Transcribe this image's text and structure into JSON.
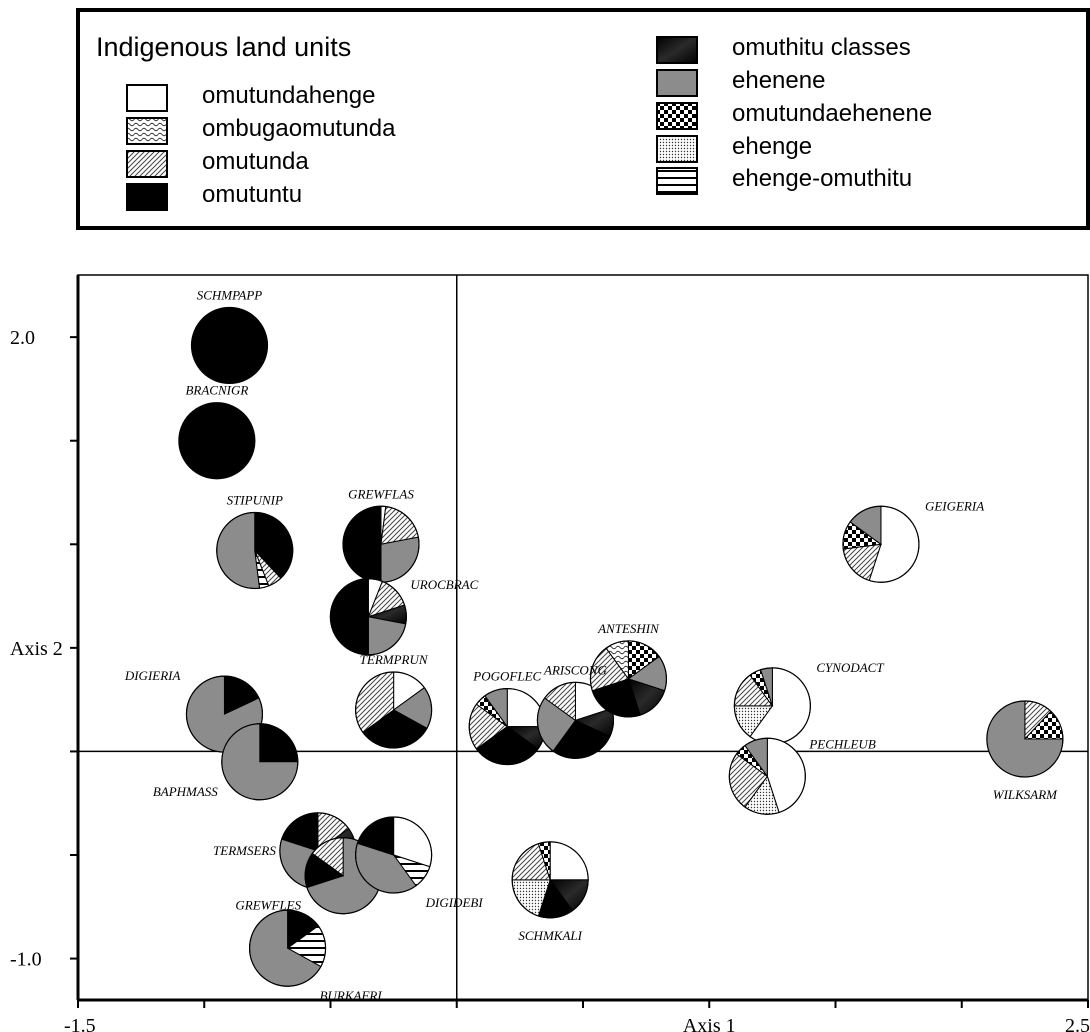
{
  "legend": {
    "title": "Indigenous land units",
    "items": [
      {
        "id": "omutundahenge",
        "label": "omutundahenge",
        "pattern": "white"
      },
      {
        "id": "ombugaomutunda",
        "label": "ombugaomutunda",
        "pattern": "wavy"
      },
      {
        "id": "omutunda",
        "label": "omutunda",
        "pattern": "diagonal"
      },
      {
        "id": "omutuntu",
        "label": "omutuntu",
        "pattern": "black"
      },
      {
        "id": "omuthitu",
        "label": "omuthitu classes",
        "pattern": "dark-gradient"
      },
      {
        "id": "ehenene",
        "label": "ehenene",
        "pattern": "gray"
      },
      {
        "id": "omutundaehenene",
        "label": "omutundaehenene",
        "pattern": "checker"
      },
      {
        "id": "ehenge",
        "label": "ehenge",
        "pattern": "dots"
      },
      {
        "id": "ehenge_omuthitu",
        "label": "ehenge-omuthitu",
        "pattern": "hlines"
      }
    ]
  },
  "chart_data": {
    "type": "scatter",
    "subtype": "pie-glyph ordination plot",
    "xlabel": "Axis 1",
    "ylabel": "Axis 2",
    "xlim": [
      -1.5,
      2.5
    ],
    "ylim": [
      -1.2,
      2.3
    ],
    "x_tick_labels": [
      {
        "value": -1.5,
        "label": "-1.5"
      },
      {
        "value": 1.0,
        "label": "Axis 1"
      },
      {
        "value": 2.5,
        "label": "2.5"
      }
    ],
    "y_tick_labels": [
      {
        "value": 2.0,
        "label": "2.0"
      },
      {
        "value": 0.5,
        "label": "Axis 2"
      },
      {
        "value": -1.0,
        "label": "-1.0"
      }
    ],
    "x_minor_ticks": [
      -1.5,
      -1.0,
      -0.5,
      0.0,
      0.5,
      1.0,
      1.5,
      2.0,
      2.5
    ],
    "y_minor_ticks": [
      -1.0,
      -0.5,
      0.0,
      0.5,
      1.0,
      1.5,
      2.0
    ],
    "reference_lines": {
      "x": 0.0,
      "y": 0.0
    },
    "series": [
      {
        "name": "SCHMPAPP",
        "x": -0.9,
        "y": 1.96,
        "label_offset": "above",
        "slices": [
          {
            "unit": "omutuntu",
            "value": 100
          }
        ]
      },
      {
        "name": "BRACNIGR",
        "x": -0.95,
        "y": 1.5,
        "label_offset": "above",
        "slices": [
          {
            "unit": "omutuntu",
            "value": 100
          }
        ]
      },
      {
        "name": "STIPUNIP",
        "x": -0.8,
        "y": 0.97,
        "label_offset": "above",
        "slices": [
          {
            "unit": "omutuntu",
            "value": 38
          },
          {
            "unit": "omutunda",
            "value": 6
          },
          {
            "unit": "ehenge_omuthitu",
            "value": 4
          },
          {
            "unit": "ehenene",
            "value": 52
          }
        ]
      },
      {
        "name": "GREWFLAS",
        "x": -0.3,
        "y": 1.0,
        "label_offset": "above",
        "slices": [
          {
            "unit": "omutundahenge",
            "value": 2
          },
          {
            "unit": "omutunda",
            "value": 20
          },
          {
            "unit": "ehenene",
            "value": 28
          },
          {
            "unit": "omutuntu",
            "value": 50
          }
        ]
      },
      {
        "name": "UROCBRAC",
        "x": -0.35,
        "y": 0.65,
        "label_offset": "right",
        "slices": [
          {
            "unit": "omutundahenge",
            "value": 6
          },
          {
            "unit": "omutunda",
            "value": 14
          },
          {
            "unit": "omuthitu",
            "value": 8
          },
          {
            "unit": "ehenene",
            "value": 22
          },
          {
            "unit": "omutuntu",
            "value": 50
          }
        ]
      },
      {
        "name": "DIGIERIA",
        "x": -0.92,
        "y": 0.18,
        "label_offset": "upper-left",
        "slices": [
          {
            "unit": "omutuntu",
            "value": 18
          },
          {
            "unit": "ehenene",
            "value": 82
          }
        ]
      },
      {
        "name": "BAPHMASS",
        "x": -0.78,
        "y": -0.05,
        "label_offset": "lower-left",
        "slices": [
          {
            "unit": "omutuntu",
            "value": 25
          },
          {
            "unit": "ehenene",
            "value": 75
          }
        ]
      },
      {
        "name": "TERMPRUN",
        "x": -0.25,
        "y": 0.2,
        "label_offset": "above",
        "slices": [
          {
            "unit": "omutundahenge",
            "value": 15
          },
          {
            "unit": "ehenene",
            "value": 18
          },
          {
            "unit": "omutuntu",
            "value": 32
          },
          {
            "unit": "omutunda",
            "value": 35
          }
        ]
      },
      {
        "name": "POGOFLEC",
        "x": 0.2,
        "y": 0.12,
        "label_offset": "above",
        "slices": [
          {
            "unit": "omutundahenge",
            "value": 25
          },
          {
            "unit": "omuthitu",
            "value": 10
          },
          {
            "unit": "omutuntu",
            "value": 30
          },
          {
            "unit": "omutunda",
            "value": 20
          },
          {
            "unit": "omutundaehenene",
            "value": 5
          },
          {
            "unit": "ehenene",
            "value": 10
          }
        ]
      },
      {
        "name": "ARISCONG",
        "x": 0.47,
        "y": 0.15,
        "label_offset": "above",
        "slices": [
          {
            "unit": "omutundahenge",
            "value": 20
          },
          {
            "unit": "omuthitu",
            "value": 12
          },
          {
            "unit": "omutuntu",
            "value": 28
          },
          {
            "unit": "ehenene",
            "value": 25
          },
          {
            "unit": "omutunda",
            "value": 15
          }
        ]
      },
      {
        "name": "ANTESHIN",
        "x": 0.68,
        "y": 0.35,
        "label_offset": "above",
        "slices": [
          {
            "unit": "omutundaehenene",
            "value": 15
          },
          {
            "unit": "ehenene",
            "value": 15
          },
          {
            "unit": "omuthitu",
            "value": 15
          },
          {
            "unit": "omutuntu",
            "value": 25
          },
          {
            "unit": "omutunda",
            "value": 20
          },
          {
            "unit": "ombugaomutunda",
            "value": 10
          }
        ]
      },
      {
        "name": "SCHMKALI",
        "x": 0.37,
        "y": -0.62,
        "label_offset": "below",
        "slices": [
          {
            "unit": "omutundahenge",
            "value": 25
          },
          {
            "unit": "omuthitu",
            "value": 15
          },
          {
            "unit": "omutuntu",
            "value": 15
          },
          {
            "unit": "ehenge",
            "value": 20
          },
          {
            "unit": "omutunda",
            "value": 20
          },
          {
            "unit": "omutundaehenene",
            "value": 5
          }
        ]
      },
      {
        "name": "TERMSERS",
        "x": -0.55,
        "y": -0.48,
        "label_offset": "left",
        "slices": [
          {
            "unit": "omutunda",
            "value": 15
          },
          {
            "unit": "omuthitu",
            "value": 10
          },
          {
            "unit": "ehenene",
            "value": 55
          },
          {
            "unit": "omutuntu",
            "value": 20
          }
        ]
      },
      {
        "name": "GREWFLES",
        "x": -0.45,
        "y": -0.6,
        "label_offset": "lower-left",
        "slices": [
          {
            "unit": "ehenene",
            "value": 70
          },
          {
            "unit": "omutuntu",
            "value": 15
          },
          {
            "unit": "omutunda",
            "value": 15
          }
        ]
      },
      {
        "name": "DIGIDEBI",
        "x": -0.25,
        "y": -0.5,
        "label_offset": "lower-right",
        "slices": [
          {
            "unit": "omutundahenge",
            "value": 30
          },
          {
            "unit": "ehenge_omuthitu",
            "value": 10
          },
          {
            "unit": "ehenene",
            "value": 40
          },
          {
            "unit": "omutuntu",
            "value": 20
          }
        ]
      },
      {
        "name": "BURKAFRI",
        "x": -0.67,
        "y": -0.95,
        "label_offset": "lower-right",
        "slices": [
          {
            "unit": "omutuntu",
            "value": 15
          },
          {
            "unit": "ehenge_omuthitu",
            "value": 18
          },
          {
            "unit": "ehenene",
            "value": 67
          }
        ]
      },
      {
        "name": "CYNODACT",
        "x": 1.25,
        "y": 0.22,
        "label_offset": "upper-right",
        "slices": [
          {
            "unit": "omutundahenge",
            "value": 60
          },
          {
            "unit": "ehenge",
            "value": 15
          },
          {
            "unit": "omutunda",
            "value": 15
          },
          {
            "unit": "omutundaehenene",
            "value": 5
          },
          {
            "unit": "ehenene",
            "value": 5
          }
        ]
      },
      {
        "name": "GEIGERIA",
        "x": 1.68,
        "y": 1.0,
        "label_offset": "upper-right",
        "slices": [
          {
            "unit": "omutundahenge",
            "value": 55
          },
          {
            "unit": "omutunda",
            "value": 18
          },
          {
            "unit": "omutundaehenene",
            "value": 12
          },
          {
            "unit": "ehenene",
            "value": 15
          }
        ]
      },
      {
        "name": "PECHLEUB",
        "x": 1.23,
        "y": -0.12,
        "label_offset": "right",
        "slices": [
          {
            "unit": "omutundahenge",
            "value": 45
          },
          {
            "unit": "ehenge",
            "value": 15
          },
          {
            "unit": "omutunda",
            "value": 25
          },
          {
            "unit": "omutundaehenene",
            "value": 5
          },
          {
            "unit": "ehenene",
            "value": 10
          }
        ]
      },
      {
        "name": "WILKSARM",
        "x": 2.25,
        "y": 0.06,
        "label_offset": "below",
        "slices": [
          {
            "unit": "omutunda",
            "value": 12
          },
          {
            "unit": "omutundaehenene",
            "value": 13
          },
          {
            "unit": "ehenene",
            "value": 75
          }
        ]
      }
    ]
  }
}
